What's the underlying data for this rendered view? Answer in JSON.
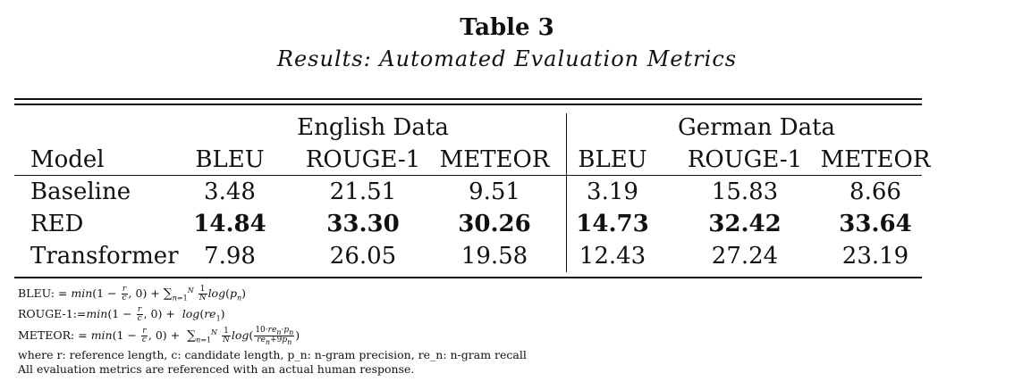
{
  "table": {
    "title": "Table 3",
    "caption": "Results: Automated Evaluation Metrics",
    "groups": [
      "English Data",
      "German Data"
    ],
    "headers": [
      "Model",
      "BLEU",
      "ROUGE-1",
      "METEOR",
      "BLEU",
      "ROUGE-1",
      "METEOR"
    ],
    "rows": [
      {
        "model": "Baseline",
        "values": [
          "3.48",
          "21.51",
          "9.51",
          "3.19",
          "15.83",
          "8.66"
        ],
        "bold": false
      },
      {
        "model": "RED",
        "values": [
          "14.84",
          "33.30",
          "30.26",
          "14.73",
          "32.42",
          "33.64"
        ],
        "bold": true
      },
      {
        "model": "Transformer",
        "values": [
          "7.98",
          "26.05",
          "19.58",
          "12.43",
          "27.24",
          "23.19"
        ],
        "bold": false
      }
    ]
  },
  "notes": {
    "bleu_prefix": "BLEU: =",
    "rouge_prefix": "ROUGE-1:=",
    "meteor_prefix": "METEOR: =",
    "where_line": "where r: reference length, c: candidate length, p_n: n-gram precision, re_n: n-gram recall",
    "reference_line": "All evaluation metrics are referenced with an actual human response."
  }
}
